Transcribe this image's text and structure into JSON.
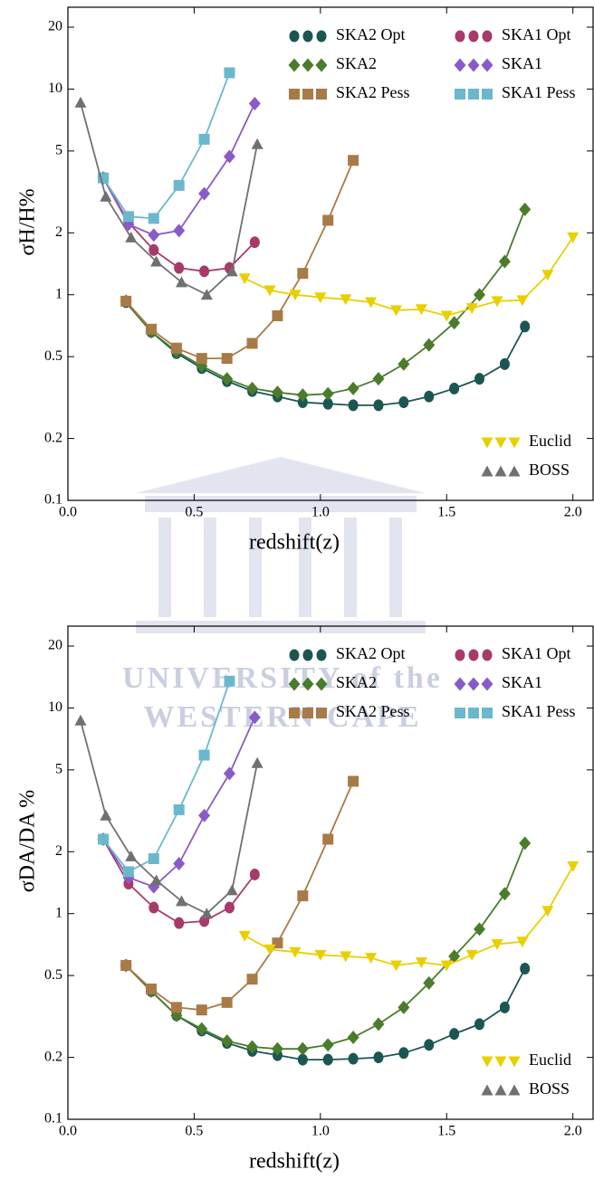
{
  "watermark": [
    "UNIVERSITY of the",
    "WESTERN CAPE"
  ],
  "chart_data": [
    {
      "type": "line",
      "y_label": "σH/H%",
      "x_label": "redshift(z)",
      "log_y": true,
      "xlim": [
        0,
        2.08
      ],
      "ylim": [
        0.1,
        25
      ],
      "xticks": [
        {
          "value": 0,
          "label": "0.0"
        },
        0.5,
        {
          "value": 1,
          "label": "1.0"
        },
        1.5,
        {
          "value": 2,
          "label": "2.0"
        }
      ],
      "yticks": [
        0.1,
        0.2,
        0.5,
        1,
        2,
        5,
        10,
        20
      ],
      "series": [
        {
          "name": "SKA2 Opt",
          "color": "#1b5652",
          "marker": "circle",
          "x": [
            0.23,
            0.33,
            0.43,
            0.53,
            0.63,
            0.73,
            0.83,
            0.93,
            1.03,
            1.13,
            1.23,
            1.33,
            1.43,
            1.53,
            1.63,
            1.73,
            1.81
          ],
          "values": [
            0.92,
            0.66,
            0.52,
            0.44,
            0.38,
            0.34,
            0.32,
            0.3,
            0.295,
            0.29,
            0.29,
            0.3,
            0.32,
            0.35,
            0.39,
            0.46,
            0.7
          ]
        },
        {
          "name": "SKA2",
          "color": "#4a7c2c",
          "marker": "diamond",
          "x": [
            0.23,
            0.33,
            0.43,
            0.53,
            0.63,
            0.73,
            0.83,
            0.93,
            1.03,
            1.13,
            1.23,
            1.33,
            1.43,
            1.53,
            1.63,
            1.73,
            1.81
          ],
          "values": [
            0.93,
            0.66,
            0.53,
            0.45,
            0.39,
            0.35,
            0.335,
            0.325,
            0.33,
            0.35,
            0.39,
            0.46,
            0.57,
            0.73,
            1.0,
            1.45,
            2.6
          ]
        },
        {
          "name": "SKA2 Pess",
          "color": "#a87a48",
          "marker": "square",
          "x": [
            0.23,
            0.33,
            0.43,
            0.53,
            0.63,
            0.73,
            0.83,
            0.93,
            1.03,
            1.13
          ],
          "values": [
            0.93,
            0.68,
            0.55,
            0.49,
            0.49,
            0.58,
            0.79,
            1.27,
            2.3,
            4.5
          ]
        },
        {
          "name": "SKA1 Opt",
          "color": "#a83a6a",
          "marker": "circle",
          "x": [
            0.14,
            0.24,
            0.34,
            0.44,
            0.54,
            0.64,
            0.74
          ],
          "values": [
            3.7,
            2.25,
            1.65,
            1.35,
            1.3,
            1.35,
            1.8
          ]
        },
        {
          "name": "SKA1",
          "color": "#8a5ac8",
          "marker": "diamond",
          "x": [
            0.14,
            0.24,
            0.34,
            0.44,
            0.54,
            0.64,
            0.74
          ],
          "values": [
            3.7,
            2.2,
            1.95,
            2.05,
            3.1,
            4.7,
            8.5
          ]
        },
        {
          "name": "SKA1 Pess",
          "color": "#6bb8cc",
          "marker": "square",
          "x": [
            0.14,
            0.24,
            0.34,
            0.44,
            0.54,
            0.64
          ],
          "values": [
            3.7,
            2.4,
            2.35,
            3.4,
            5.7,
            12
          ]
        },
        {
          "name": "Euclid",
          "color": "#e8d000",
          "marker": "triangle-down",
          "x": [
            0.7,
            0.8,
            0.9,
            1.0,
            1.1,
            1.2,
            1.3,
            1.4,
            1.5,
            1.6,
            1.7,
            1.8,
            1.9,
            2.0
          ],
          "values": [
            1.2,
            1.05,
            1.0,
            0.97,
            0.95,
            0.92,
            0.84,
            0.85,
            0.79,
            0.86,
            0.93,
            0.94,
            1.25,
            1.9
          ]
        },
        {
          "name": "BOSS",
          "color": "#707070",
          "marker": "triangle-up",
          "x": [
            0.05,
            0.15,
            0.25,
            0.35,
            0.45,
            0.55,
            0.65,
            0.75
          ],
          "values": [
            8.6,
            3.0,
            1.9,
            1.45,
            1.15,
            1.0,
            1.3,
            5.4
          ]
        }
      ]
    },
    {
      "type": "line",
      "y_label": "σDA/DA %",
      "x_label": "redshift(z)",
      "log_y": true,
      "xlim": [
        0,
        2.08
      ],
      "ylim": [
        0.1,
        25
      ],
      "xticks": [
        {
          "value": 0,
          "label": "0.0"
        },
        0.5,
        {
          "value": 1,
          "label": "1.0"
        },
        1.5,
        {
          "value": 2,
          "label": "2.0"
        }
      ],
      "yticks": [
        0.1,
        0.2,
        0.5,
        1,
        2,
        5,
        10,
        20
      ],
      "series": [
        {
          "name": "SKA2 Opt",
          "color": "#1b5652",
          "marker": "circle",
          "x": [
            0.23,
            0.33,
            0.43,
            0.53,
            0.63,
            0.73,
            0.83,
            0.93,
            1.03,
            1.13,
            1.23,
            1.33,
            1.43,
            1.53,
            1.63,
            1.73,
            1.81
          ],
          "values": [
            0.56,
            0.42,
            0.32,
            0.27,
            0.235,
            0.215,
            0.205,
            0.195,
            0.195,
            0.197,
            0.2,
            0.21,
            0.23,
            0.26,
            0.29,
            0.35,
            0.54
          ]
        },
        {
          "name": "SKA2",
          "color": "#4a7c2c",
          "marker": "diamond",
          "x": [
            0.23,
            0.33,
            0.43,
            0.53,
            0.63,
            0.73,
            0.83,
            0.93,
            1.03,
            1.13,
            1.23,
            1.33,
            1.43,
            1.53,
            1.63,
            1.73,
            1.81
          ],
          "values": [
            0.56,
            0.42,
            0.32,
            0.275,
            0.24,
            0.225,
            0.22,
            0.22,
            0.23,
            0.25,
            0.29,
            0.35,
            0.46,
            0.62,
            0.84,
            1.25,
            2.2
          ]
        },
        {
          "name": "SKA2 Pess",
          "color": "#a87a48",
          "marker": "square",
          "x": [
            0.23,
            0.33,
            0.43,
            0.53,
            0.63,
            0.73,
            0.83,
            0.93,
            1.03,
            1.13
          ],
          "values": [
            0.56,
            0.43,
            0.35,
            0.34,
            0.37,
            0.48,
            0.72,
            1.22,
            2.3,
            4.4
          ]
        },
        {
          "name": "SKA1 Opt",
          "color": "#a83a6a",
          "marker": "circle",
          "x": [
            0.14,
            0.24,
            0.34,
            0.44,
            0.54,
            0.64,
            0.74
          ],
          "values": [
            2.3,
            1.4,
            1.07,
            0.9,
            0.92,
            1.07,
            1.55
          ]
        },
        {
          "name": "SKA1",
          "color": "#8a5ac8",
          "marker": "diamond",
          "x": [
            0.14,
            0.24,
            0.34,
            0.44,
            0.54,
            0.64,
            0.74
          ],
          "values": [
            2.3,
            1.5,
            1.35,
            1.75,
            3.0,
            4.8,
            9.0
          ]
        },
        {
          "name": "SKA1 Pess",
          "color": "#6bb8cc",
          "marker": "square",
          "x": [
            0.14,
            0.24,
            0.34,
            0.44,
            0.54,
            0.64
          ],
          "values": [
            2.3,
            1.6,
            1.85,
            3.2,
            5.9,
            13.5
          ]
        },
        {
          "name": "Euclid",
          "color": "#e8d000",
          "marker": "triangle-down",
          "x": [
            0.7,
            0.8,
            0.9,
            1.0,
            1.1,
            1.2,
            1.3,
            1.4,
            1.5,
            1.6,
            1.7,
            1.8,
            1.9,
            2.0
          ],
          "values": [
            0.78,
            0.67,
            0.65,
            0.63,
            0.62,
            0.61,
            0.56,
            0.58,
            0.56,
            0.63,
            0.71,
            0.73,
            1.03,
            1.7
          ]
        },
        {
          "name": "BOSS",
          "color": "#707070",
          "marker": "triangle-up",
          "x": [
            0.05,
            0.15,
            0.25,
            0.35,
            0.45,
            0.55,
            0.65,
            0.75
          ],
          "values": [
            8.7,
            3.0,
            1.9,
            1.45,
            1.15,
            1.0,
            1.3,
            5.4
          ]
        }
      ]
    }
  ]
}
